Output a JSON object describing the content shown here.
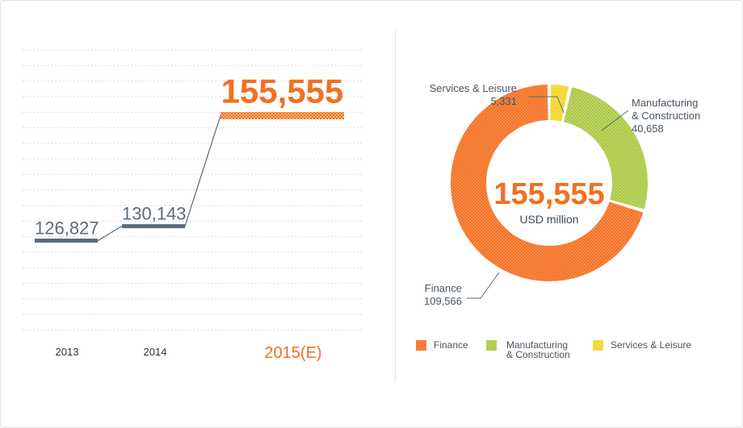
{
  "chart_data": [
    {
      "type": "line",
      "categories": [
        "2013",
        "2014",
        "2015(E)"
      ],
      "values": [
        126827,
        130143,
        155555
      ],
      "value_labels": [
        "126,827",
        "130,143",
        "155,555"
      ],
      "highlight_category": "2015(E)",
      "title": "",
      "xlabel": "",
      "ylabel": ""
    },
    {
      "type": "pie",
      "style": "donut",
      "center_value": "155,555",
      "center_unit": "USD million",
      "slices": [
        {
          "name": "Finance",
          "value": 109566,
          "value_label": "109,566",
          "color": "#f36f21",
          "callout": "Finance"
        },
        {
          "name": "Manufacturing & Construction",
          "value": 40658,
          "value_label": "40,658",
          "color": "#a9c63f",
          "callout": "Manufacturing\n& Construction",
          "legend": "Manufacturing\n& Construction"
        },
        {
          "name": "Services & Leisure",
          "value": 5331,
          "value_label": "5,331",
          "color": "#f2d21b",
          "callout": "Services & Leisure",
          "legend": "Services & Leisure"
        }
      ],
      "legend_position": "bottom"
    }
  ],
  "colors": {
    "accent": "#f36f21",
    "line": "#5b6b7a",
    "grid": "#d6d6d6",
    "text": "#4a5560"
  }
}
